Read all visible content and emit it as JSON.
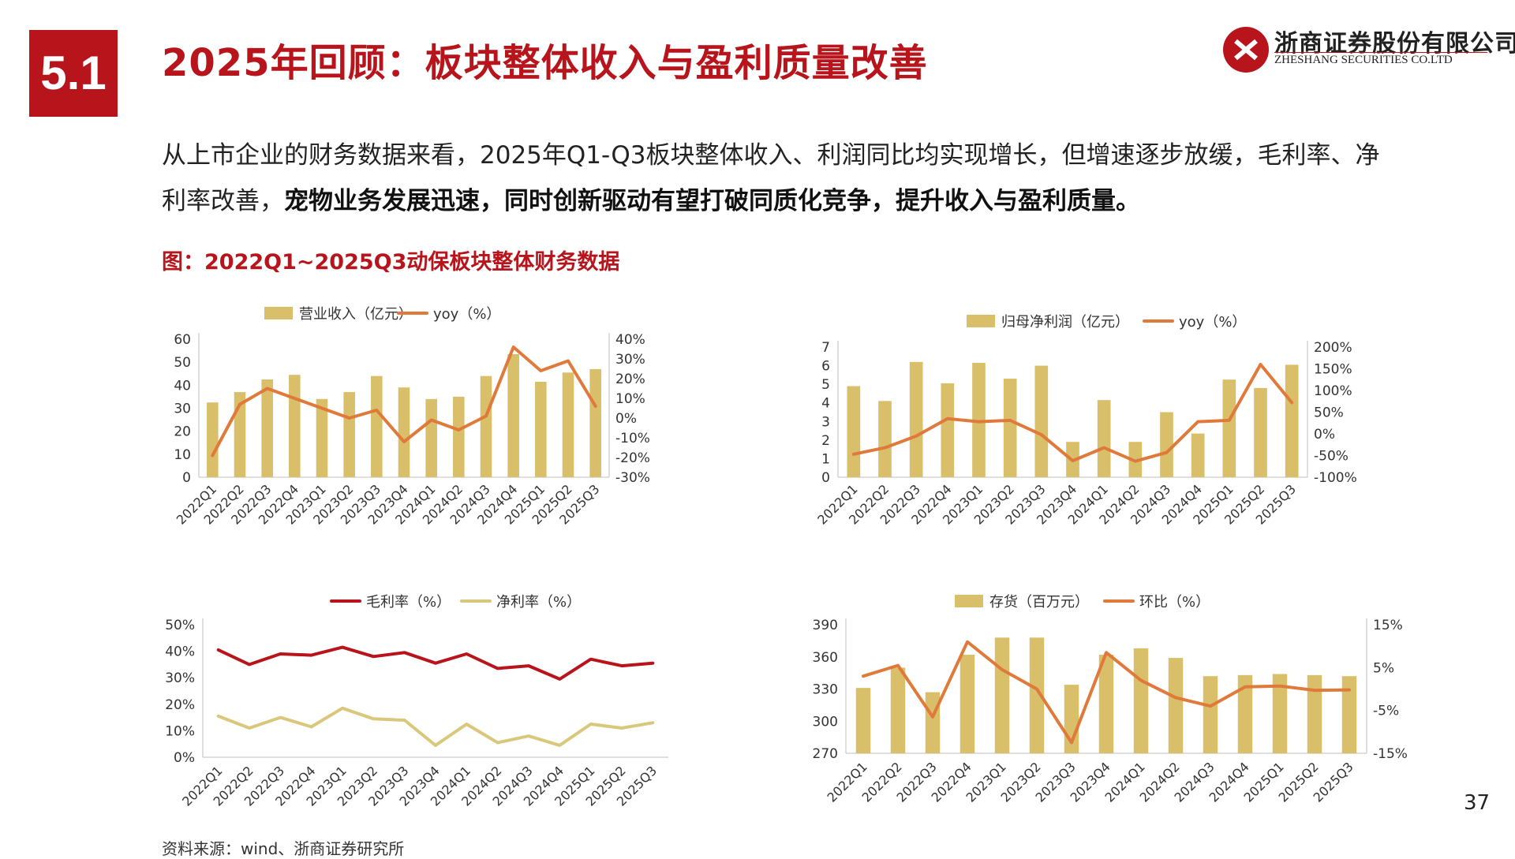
{
  "header": {
    "section_number": "5.1",
    "title": "2025年回顾：板块整体收入与盈利质量改善",
    "company_cn": "浙商证券股份有限公司",
    "company_en": "ZHESHANG SECURITIES CO.LTD"
  },
  "intro": {
    "normal": "从上市企业的财务数据来看，2025年Q1-Q3板块整体收入、利润同比均实现增长，但增速逐步放缓，毛利率、净利率改善，",
    "bold": "宠物业务发展迅速，同时创新驱动有望打破同质化竞争，提升收入与盈利质量。"
  },
  "figure_caption": "图：2022Q1~2025Q3动保板块整体财务数据",
  "source": "资料来源：wind、浙商证券研究所",
  "page_number": "37",
  "colors": {
    "accent": "#b8141b",
    "bar": "#d9bf6a",
    "line_orange": "#e07a3a",
    "line_red": "#b8141b",
    "line_tan": "#d9c77c"
  },
  "chart_data": [
    {
      "type": "bar",
      "categories": [
        "2022Q1",
        "2022Q2",
        "2022Q3",
        "2022Q4",
        "2023Q1",
        "2023Q2",
        "2023Q3",
        "2023Q4",
        "2024Q1",
        "2024Q2",
        "2024Q3",
        "2024Q4",
        "2025Q1",
        "2025Q2",
        "2025Q3"
      ],
      "series": [
        {
          "name": "营业收入（亿元）",
          "type": "bar",
          "axis": "left",
          "values": [
            32.5,
            37,
            42.5,
            44.5,
            34,
            37,
            44,
            39,
            34,
            35,
            44,
            53.5,
            41.5,
            45.5,
            47
          ]
        },
        {
          "name": "yoy（%）",
          "type": "line",
          "axis": "right",
          "values": [
            -19,
            7,
            15,
            10,
            5,
            0,
            4,
            -12,
            -1,
            -6,
            1,
            36,
            24,
            29,
            6
          ]
        }
      ],
      "y_left": {
        "min": 0,
        "max": 60,
        "ticks": [
          "0",
          "10",
          "20",
          "30",
          "40",
          "50",
          "60"
        ]
      },
      "y_right": {
        "min": -30,
        "max": 40,
        "ticks": [
          "-30%",
          "-20%",
          "-10%",
          "0%",
          "10%",
          "20%",
          "30%",
          "40%"
        ]
      },
      "legend": "top"
    },
    {
      "type": "bar",
      "categories": [
        "2022Q1",
        "2022Q2",
        "2022Q3",
        "2022Q4",
        "2023Q1",
        "2023Q2",
        "2023Q3",
        "2023Q4",
        "2024Q1",
        "2024Q2",
        "2024Q3",
        "2024Q4",
        "2025Q1",
        "2025Q2",
        "2025Q3"
      ],
      "series": [
        {
          "name": "归母净利润（亿元）",
          "type": "bar",
          "axis": "left",
          "values": [
            4.9,
            4.1,
            6.2,
            5.05,
            6.15,
            5.3,
            6,
            1.9,
            4.15,
            1.9,
            3.5,
            2.35,
            5.25,
            4.8,
            6.05
          ]
        },
        {
          "name": "yoy（%）",
          "type": "line",
          "axis": "right",
          "values": [
            -47,
            -32,
            -5,
            35,
            28,
            31,
            -2,
            -62,
            -32,
            -63,
            -43,
            28,
            31,
            160,
            72
          ]
        }
      ],
      "y_left": {
        "min": 0,
        "max": 7,
        "ticks": [
          "0",
          "1",
          "2",
          "3",
          "4",
          "5",
          "6",
          "7"
        ]
      },
      "y_right": {
        "min": -100,
        "max": 200,
        "ticks": [
          "-100%",
          "-50%",
          "0%",
          "50%",
          "100%",
          "150%",
          "200%"
        ]
      },
      "legend": "top"
    },
    {
      "type": "line",
      "categories": [
        "2022Q1",
        "2022Q2",
        "2022Q3",
        "2022Q4",
        "2023Q1",
        "2023Q2",
        "2023Q3",
        "2023Q4",
        "2024Q1",
        "2024Q2",
        "2024Q3",
        "2024Q4",
        "2025Q1",
        "2025Q2",
        "2025Q3"
      ],
      "series": [
        {
          "name": "毛利率（%）",
          "type": "line",
          "axis": "left",
          "values": [
            40.5,
            35,
            39,
            38.5,
            41.5,
            38,
            39.5,
            35.5,
            39,
            33.5,
            34.5,
            29.5,
            37,
            34.5,
            35.5
          ]
        },
        {
          "name": "净利率（%）",
          "type": "line",
          "axis": "left",
          "values": [
            15.5,
            11,
            15,
            11.5,
            18.5,
            14.5,
            14,
            4.5,
            12.5,
            5.5,
            8,
            4.5,
            12.5,
            11,
            13
          ]
        }
      ],
      "y_left": {
        "min": 0,
        "max": 50,
        "ticks": [
          "0%",
          "10%",
          "20%",
          "30%",
          "40%",
          "50%"
        ]
      },
      "legend": "top"
    },
    {
      "type": "bar",
      "categories": [
        "2022Q1",
        "2022Q2",
        "2022Q3",
        "2022Q4",
        "2023Q1",
        "2023Q2",
        "2023Q3",
        "2023Q4",
        "2024Q1",
        "2024Q2",
        "2024Q3",
        "2024Q4",
        "2025Q1",
        "2025Q2",
        "2025Q3"
      ],
      "series": [
        {
          "name": "存货（百万元）",
          "type": "bar",
          "axis": "left",
          "values": [
            331,
            350,
            327,
            362,
            378,
            378,
            334,
            362,
            368,
            359,
            342,
            343,
            344,
            343,
            342
          ]
        },
        {
          "name": "环比（%）",
          "type": "line",
          "axis": "right",
          "values": [
            3,
            5.5,
            -6.5,
            11,
            4.5,
            0,
            -12.5,
            8.5,
            2,
            -2,
            -4,
            0.5,
            0.7,
            -0.3,
            -0.2
          ]
        }
      ],
      "y_left": {
        "min": 270,
        "max": 390,
        "ticks": [
          "270",
          "300",
          "330",
          "360",
          "390"
        ]
      },
      "y_right": {
        "min": -15,
        "max": 15,
        "ticks": [
          "-15%",
          "-5%",
          "5%",
          "15%"
        ]
      },
      "legend": "top"
    }
  ]
}
